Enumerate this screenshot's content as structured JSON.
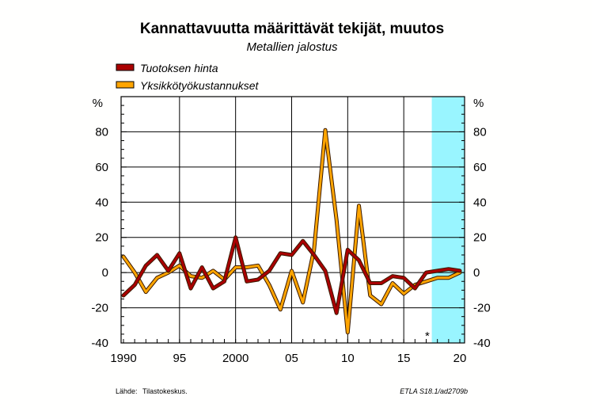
{
  "chart_data": {
    "type": "line",
    "title": "Kannattavuutta määrittävät tekijät, muutos",
    "subtitle": "Metallien jalostus",
    "ylabel_left": "%",
    "ylabel_right": "%",
    "ylim": [
      -40,
      100
    ],
    "yticks": [
      -40,
      -20,
      0,
      20,
      40,
      60,
      80
    ],
    "xlim": [
      1990,
      2020
    ],
    "xticks": [
      {
        "value": 1990,
        "label": "1990"
      },
      {
        "value": 1995,
        "label": "95"
      },
      {
        "value": 2000,
        "label": "2000"
      },
      {
        "value": 2005,
        "label": "05"
      },
      {
        "value": 2010,
        "label": "10"
      },
      {
        "value": 2015,
        "label": "15"
      },
      {
        "value": 2020,
        "label": "20"
      }
    ],
    "grid": true,
    "legend_position": "top-left",
    "forecast_region": {
      "from": 2017.5,
      "to": 2020.5,
      "color": "#99f5ff"
    },
    "forecast_marker": "*",
    "forecast_marker_x": 2017.1,
    "x": [
      1990,
      1991,
      1992,
      1993,
      1994,
      1995,
      1996,
      1997,
      1998,
      1999,
      2000,
      2001,
      2002,
      2003,
      2004,
      2005,
      2006,
      2007,
      2008,
      2009,
      2010,
      2011,
      2012,
      2013,
      2014,
      2015,
      2016,
      2017,
      2018,
      2019,
      2020
    ],
    "series": [
      {
        "name": "Tuotoksen hinta",
        "color": "#aa0000",
        "values": [
          -13,
          -7,
          4,
          10,
          1,
          11,
          -9,
          3,
          -9,
          -5,
          20,
          -5,
          -4,
          1,
          11,
          10,
          18,
          10,
          1,
          -23,
          13,
          7,
          -6,
          -6,
          -2,
          -3,
          -9,
          0,
          1,
          2,
          1
        ]
      },
      {
        "name": "Yksikkötyökustannukset",
        "color": "#ffa500",
        "values": [
          9,
          0,
          -11,
          -3,
          0,
          4,
          -2,
          -3,
          1,
          -4,
          3,
          3,
          4,
          -7,
          -21,
          1,
          -17,
          13,
          81,
          30,
          -34,
          38,
          -13,
          -18,
          -6,
          -12,
          -7,
          -5,
          -3,
          -3,
          0
        ]
      }
    ]
  },
  "source": {
    "label": "Lähde:",
    "value": "Tilastokeskus."
  },
  "credit": "ETLA S18.1/ad2709b"
}
